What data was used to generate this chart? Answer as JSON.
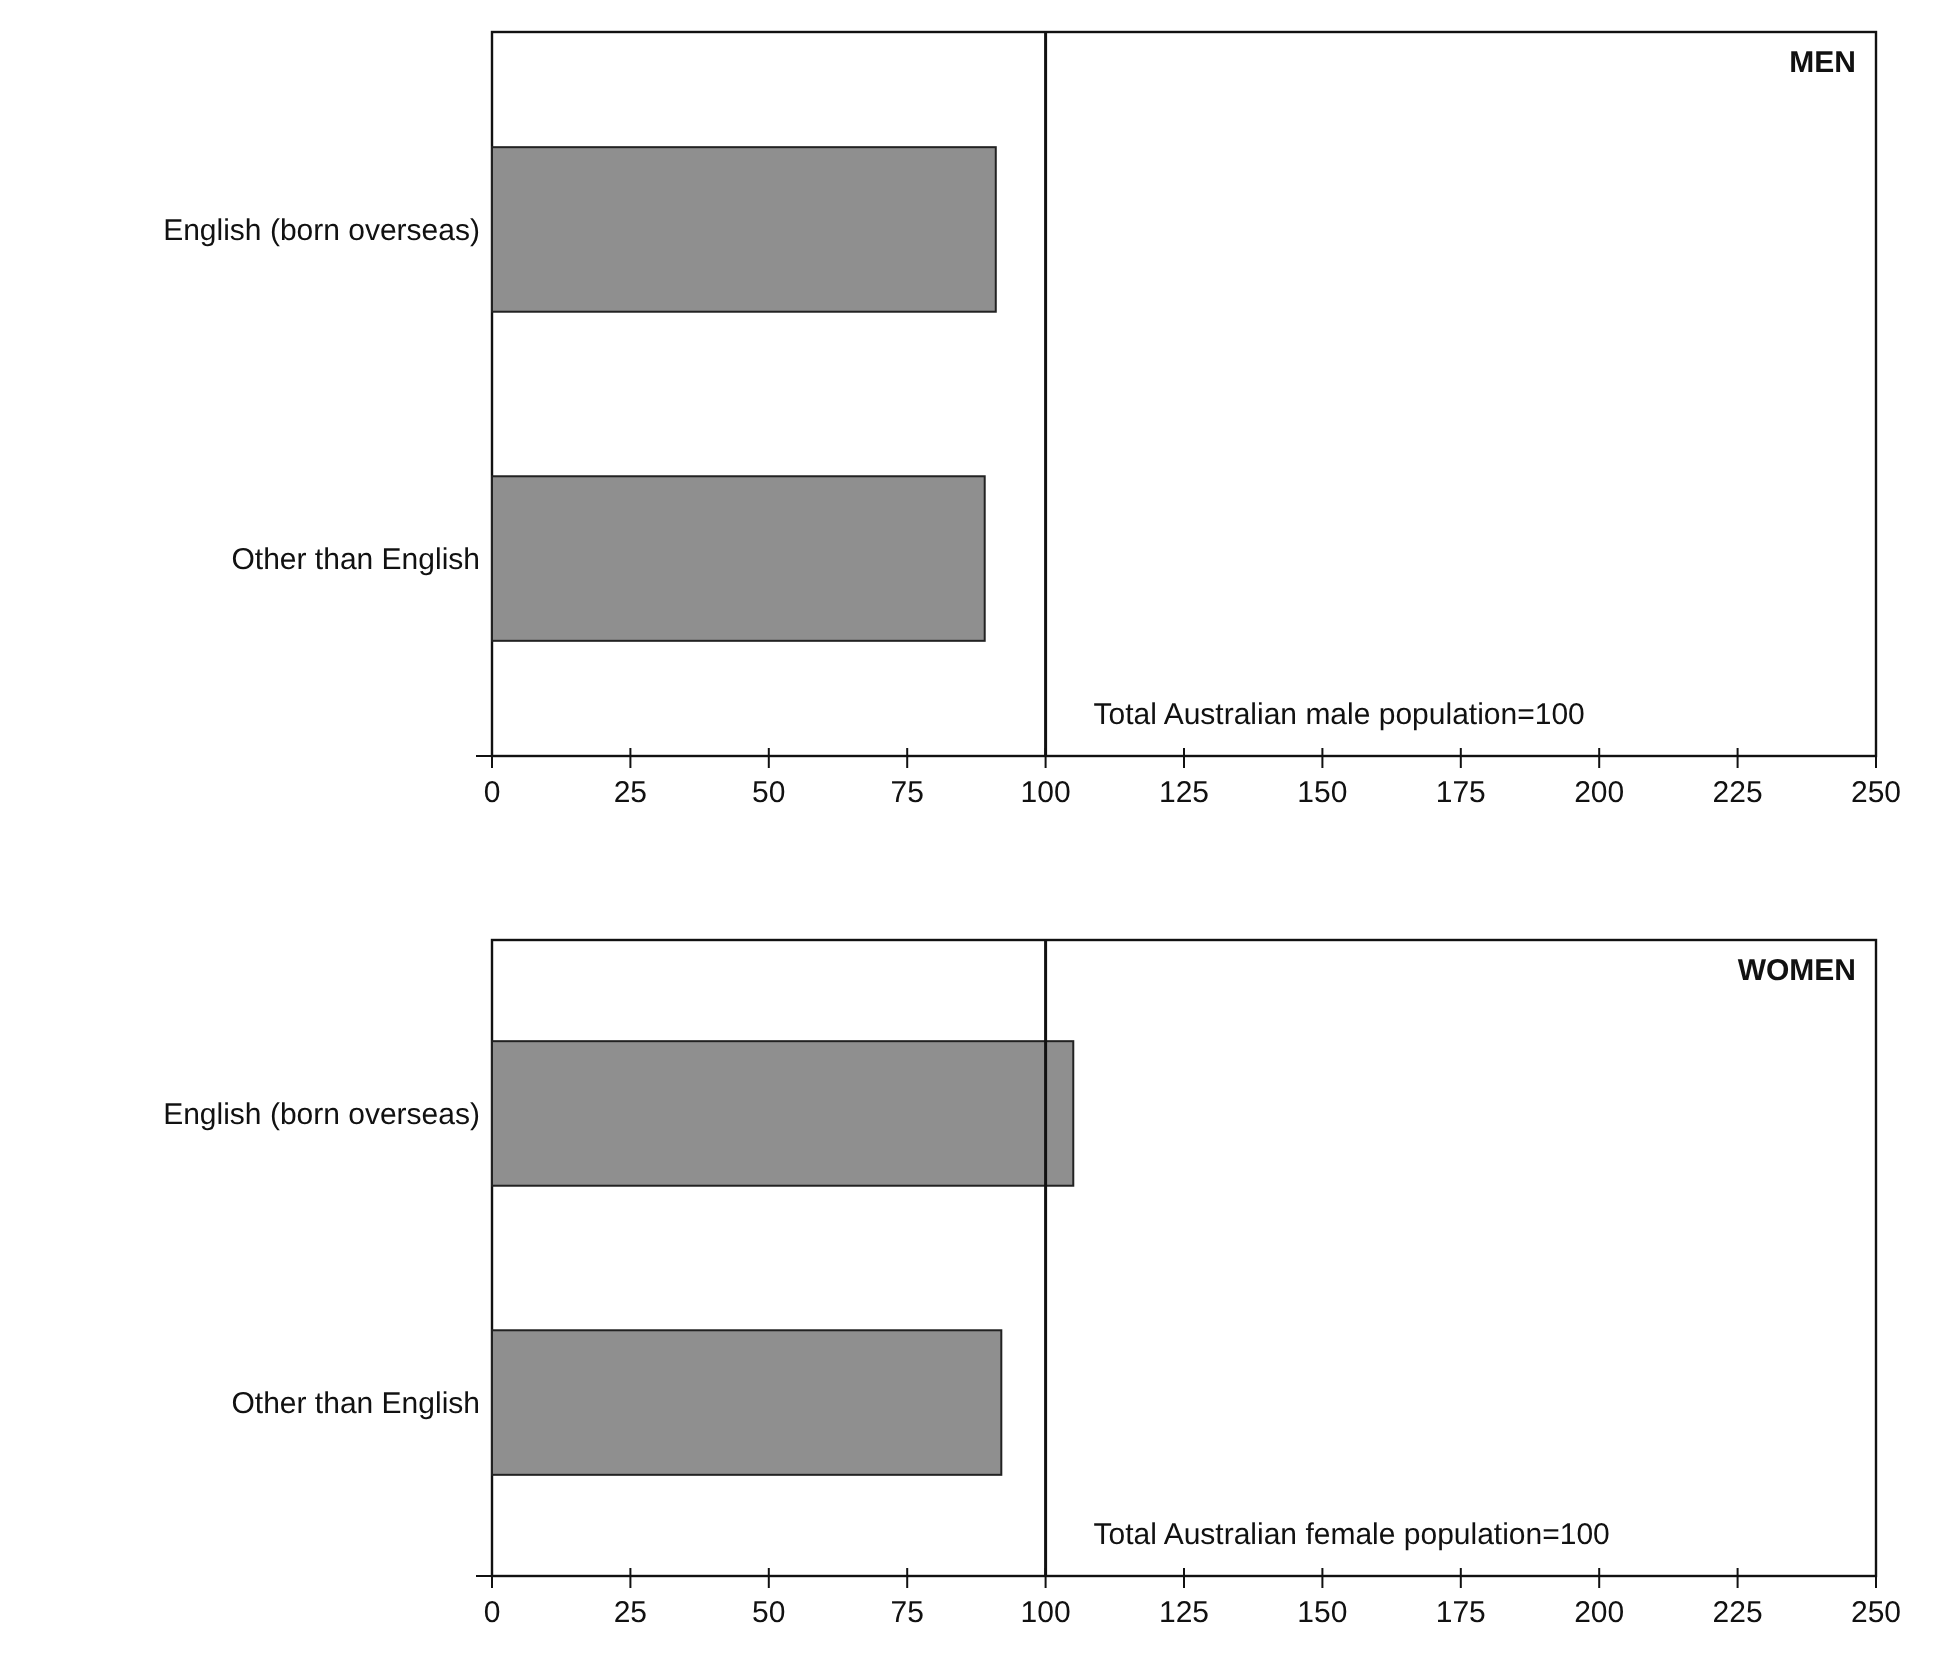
{
  "chart_data": [
    {
      "type": "bar",
      "orientation": "horizontal",
      "title": "MEN",
      "categories": [
        "English (born overseas)",
        "Other than English"
      ],
      "values": [
        91,
        89
      ],
      "color": "#8f8f8f",
      "xlim": [
        0,
        250
      ],
      "xticks": [
        0,
        25,
        50,
        75,
        100,
        125,
        150,
        175,
        200,
        225,
        250
      ],
      "ref_lines": [
        {
          "axis": "x",
          "value": 100,
          "label": "Total Australian male population=100"
        }
      ]
    },
    {
      "type": "bar",
      "orientation": "horizontal",
      "title": "WOMEN",
      "categories": [
        "English (born overseas)",
        "Other than English"
      ],
      "values": [
        105,
        92
      ],
      "color": "#8f8f8f",
      "xlim": [
        0,
        250
      ],
      "xticks": [
        0,
        25,
        50,
        75,
        100,
        125,
        150,
        175,
        200,
        225,
        250
      ],
      "ref_lines": [
        {
          "axis": "x",
          "value": 100,
          "label": "Total Australian female population=100"
        }
      ]
    }
  ]
}
